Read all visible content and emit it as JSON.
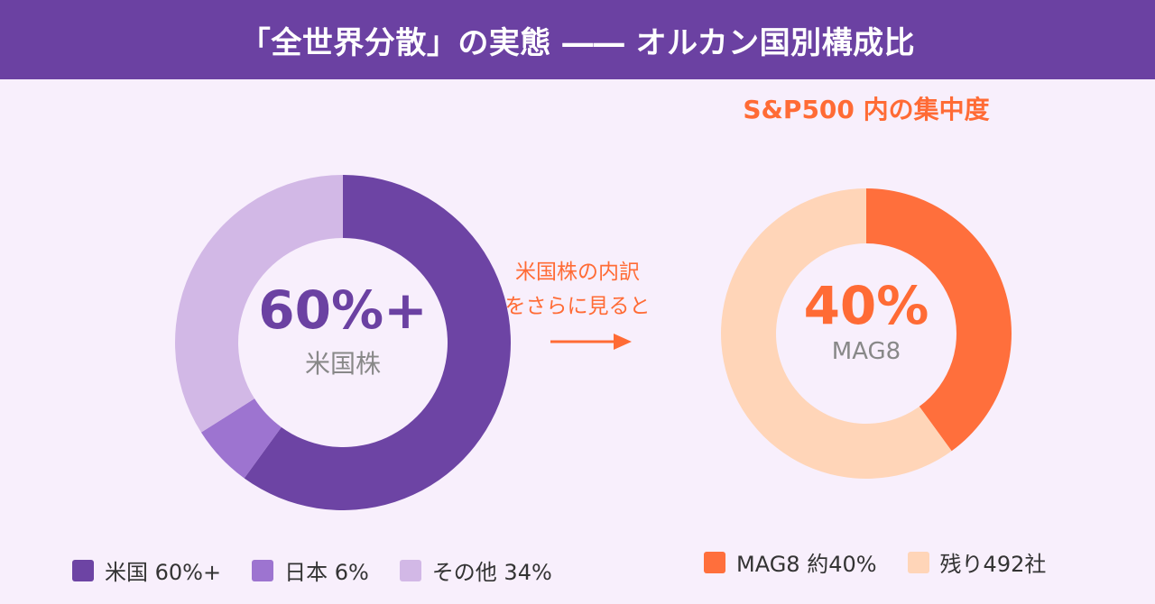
{
  "header": {
    "title": "「全世界分散」の実態 ―― オルカン国別構成比"
  },
  "subtitle": "S&P500 内の集中度",
  "transition": {
    "line1": "米国株の内訳",
    "line2": "をさらに見ると"
  },
  "colors": {
    "header_bg": "#6b41a2",
    "accent_orange": "#ff6b35",
    "us": "#6d44a4",
    "japan": "#9d74d0",
    "other": "#d2b8e6",
    "mag8": "#ff6f3c",
    "rest": "#ffd5b8"
  },
  "chart_data": [
    {
      "type": "pie",
      "center_value": "60%+",
      "center_label": "米国株",
      "slices": [
        {
          "label": "米国",
          "legend": "米国 60%+",
          "value": 60,
          "color": "#6d44a4"
        },
        {
          "label": "日本",
          "legend": "日本 6%",
          "value": 6,
          "color": "#9d74d0"
        },
        {
          "label": "その他",
          "legend": "その他 34%",
          "value": 34,
          "color": "#d2b8e6"
        }
      ]
    },
    {
      "type": "pie",
      "title": "S&P500 内の集中度",
      "center_value": "40%",
      "center_label": "MAG8",
      "slices": [
        {
          "label": "MAG8",
          "legend": "MAG8 約40%",
          "value": 40,
          "color": "#ff6f3c"
        },
        {
          "label": "残り492社",
          "legend": "残り492社",
          "value": 60,
          "color": "#ffd5b8"
        }
      ]
    }
  ]
}
